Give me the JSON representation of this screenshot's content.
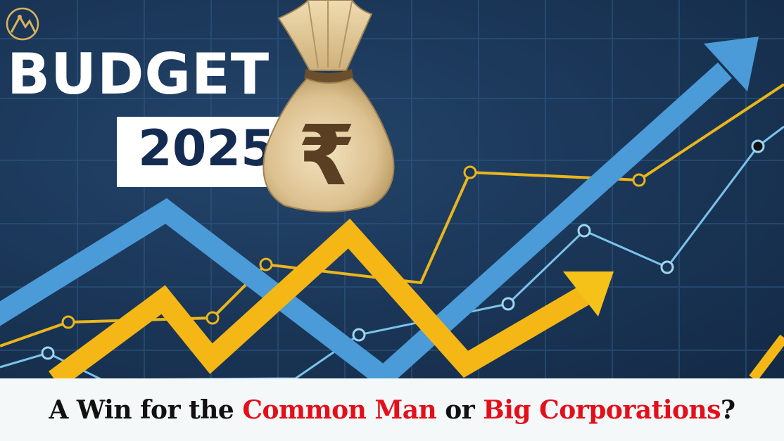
{
  "thumbnail": {
    "budget_label": "BUDGET",
    "year_label": "2025",
    "currency_symbol": "₹",
    "caption": {
      "part1": "A Win for the ",
      "highlight1": "Common Man",
      "part2": " or ",
      "highlight2": "Big Corporations",
      "part3": "?"
    }
  },
  "colors": {
    "background": "#1a3556",
    "arrow_blue": "#4a9bd8",
    "arrow_yellow": "#f5c21a",
    "line_gold": "#e9b61c",
    "line_lightblue": "#7cc3ea",
    "caption_red": "#e3101b",
    "caption_black": "#111111",
    "year_text": "#142c52"
  },
  "icons": [
    "logo-icon",
    "money-bag-icon",
    "rupee-icon"
  ]
}
